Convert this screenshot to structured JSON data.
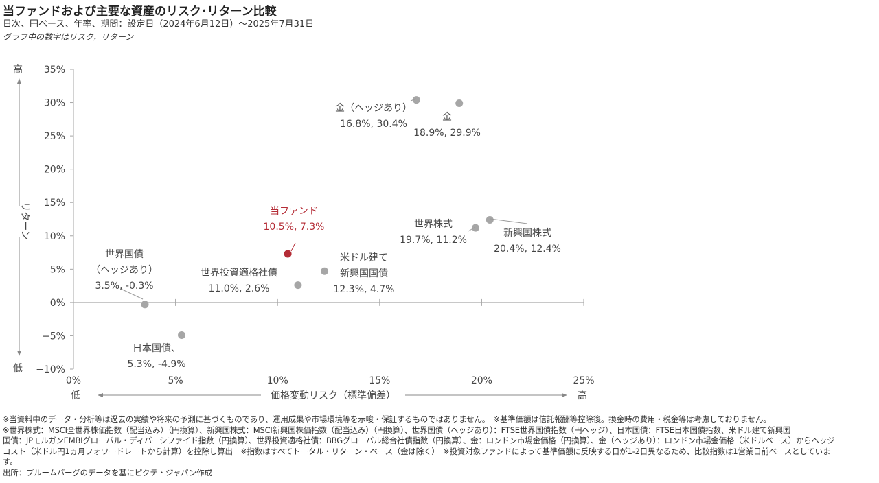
{
  "title": "当ファンドおよび主要な資産のリスク･リターン比較",
  "subtitle": "日次、円ベース、年率、期間：設定日（2024年6月12日）～2025年7月31日",
  "note": "グラフ中の数字はリスク，リターン",
  "chart_data": {
    "type": "scatter",
    "xlabel": "価格変動リスク（標準偏差）",
    "ylabel": "リターン",
    "x_low": "低",
    "x_high": "高",
    "y_low": "低",
    "y_high": "高",
    "xlim": [
      0,
      25
    ],
    "ylim": [
      -10,
      35
    ],
    "x_ticks": [
      0,
      5,
      10,
      15,
      20,
      25
    ],
    "y_ticks": [
      -10,
      -5,
      0,
      5,
      10,
      15,
      20,
      25,
      30,
      35
    ],
    "x_tick_labels": [
      "0%",
      "5%",
      "10%",
      "15%",
      "20%",
      "25%"
    ],
    "y_tick_labels": [
      "−10%",
      "−5%",
      "0%",
      "5%",
      "10%",
      "15%",
      "20%",
      "25%",
      "30%",
      "35%"
    ],
    "grid": false,
    "colors": {
      "point": "#a6a6a6",
      "highlight": "#b42c36",
      "axis": "#a6a6a6"
    },
    "points": [
      {
        "name": "当ファンド",
        "label": [
          "当ファンド",
          "10.5%, 7.3%"
        ],
        "x": 10.5,
        "y": 7.3,
        "highlight": true
      },
      {
        "name": "世界国債（ヘッジあり）",
        "label": [
          "世界国債",
          "（ヘッジあり）",
          "3.5%, -0.3%"
        ],
        "x": 3.5,
        "y": -0.3
      },
      {
        "name": "日本国債",
        "label": [
          "日本国債、",
          "5.3%, -4.9%"
        ],
        "x": 5.3,
        "y": -4.9
      },
      {
        "name": "世界投資適格社債",
        "label": [
          "世界投資適格社債",
          "11.0%, 2.6%"
        ],
        "x": 11.0,
        "y": 2.6
      },
      {
        "name": "米ドル建て新興国国債",
        "label": [
          "米ドル建て",
          "新興国国債",
          "12.3%, 4.7%"
        ],
        "x": 12.3,
        "y": 4.7
      },
      {
        "name": "世界株式",
        "label": [
          "世界株式",
          "19.7%, 11.2%"
        ],
        "x": 19.7,
        "y": 11.2
      },
      {
        "name": "新興国株式",
        "label": [
          "新興国株式",
          "20.4%, 12.4%"
        ],
        "x": 20.4,
        "y": 12.4
      },
      {
        "name": "金（ヘッジあり）",
        "label": [
          "金（ヘッジあり）",
          "16.8%, 30.4%"
        ],
        "x": 16.8,
        "y": 30.4
      },
      {
        "name": "金",
        "label": [
          "金",
          "18.9%, 29.9%"
        ],
        "x": 18.9,
        "y": 29.9
      }
    ]
  },
  "footer": {
    "lines": [
      "※当資料中のデータ・分析等は過去の実績や将来の予測に基づくものであり、運用成果や市場環境等を示唆・保証するものではありません。　※基準価額は信託報酬等控除後。換金時の費用・税金等は考慮しておりません。",
      "※世界株式：MSCI全世界株価指数（配当込み）（円換算）、新興国株式：MSCI新興国株価指数（配当込み）（円換算）、世界国債（ヘッジあり）：FTSE世界国債指数（円ヘッジ）、日本国債：FTSE日本国債指数、米ドル建て新興国",
      "国債：JPモルガンEMBIグローバル・ディバーシファイド指数（円換算）、世界投資適格社債：BBGグローバル総合社債指数（円換算）、金：ロンドン市場金価格（円換算）、金（ヘッジあり）：ロンドン市場金価格（米ドルベース）からヘッジ",
      "コスト（米ドル円1ヵ月フォワードレートから計算）を控除し算出　※指数はすべてトータル・リターン・ベース（金は除く）　※投資対象ファンドによって基準価額に反映する日が1-2日異なるため、比較指数は1営業日前ベースとしていま",
      "す。",
      "出所：ブルームバーグのデータを基にピクテ・ジャパン作成"
    ]
  }
}
